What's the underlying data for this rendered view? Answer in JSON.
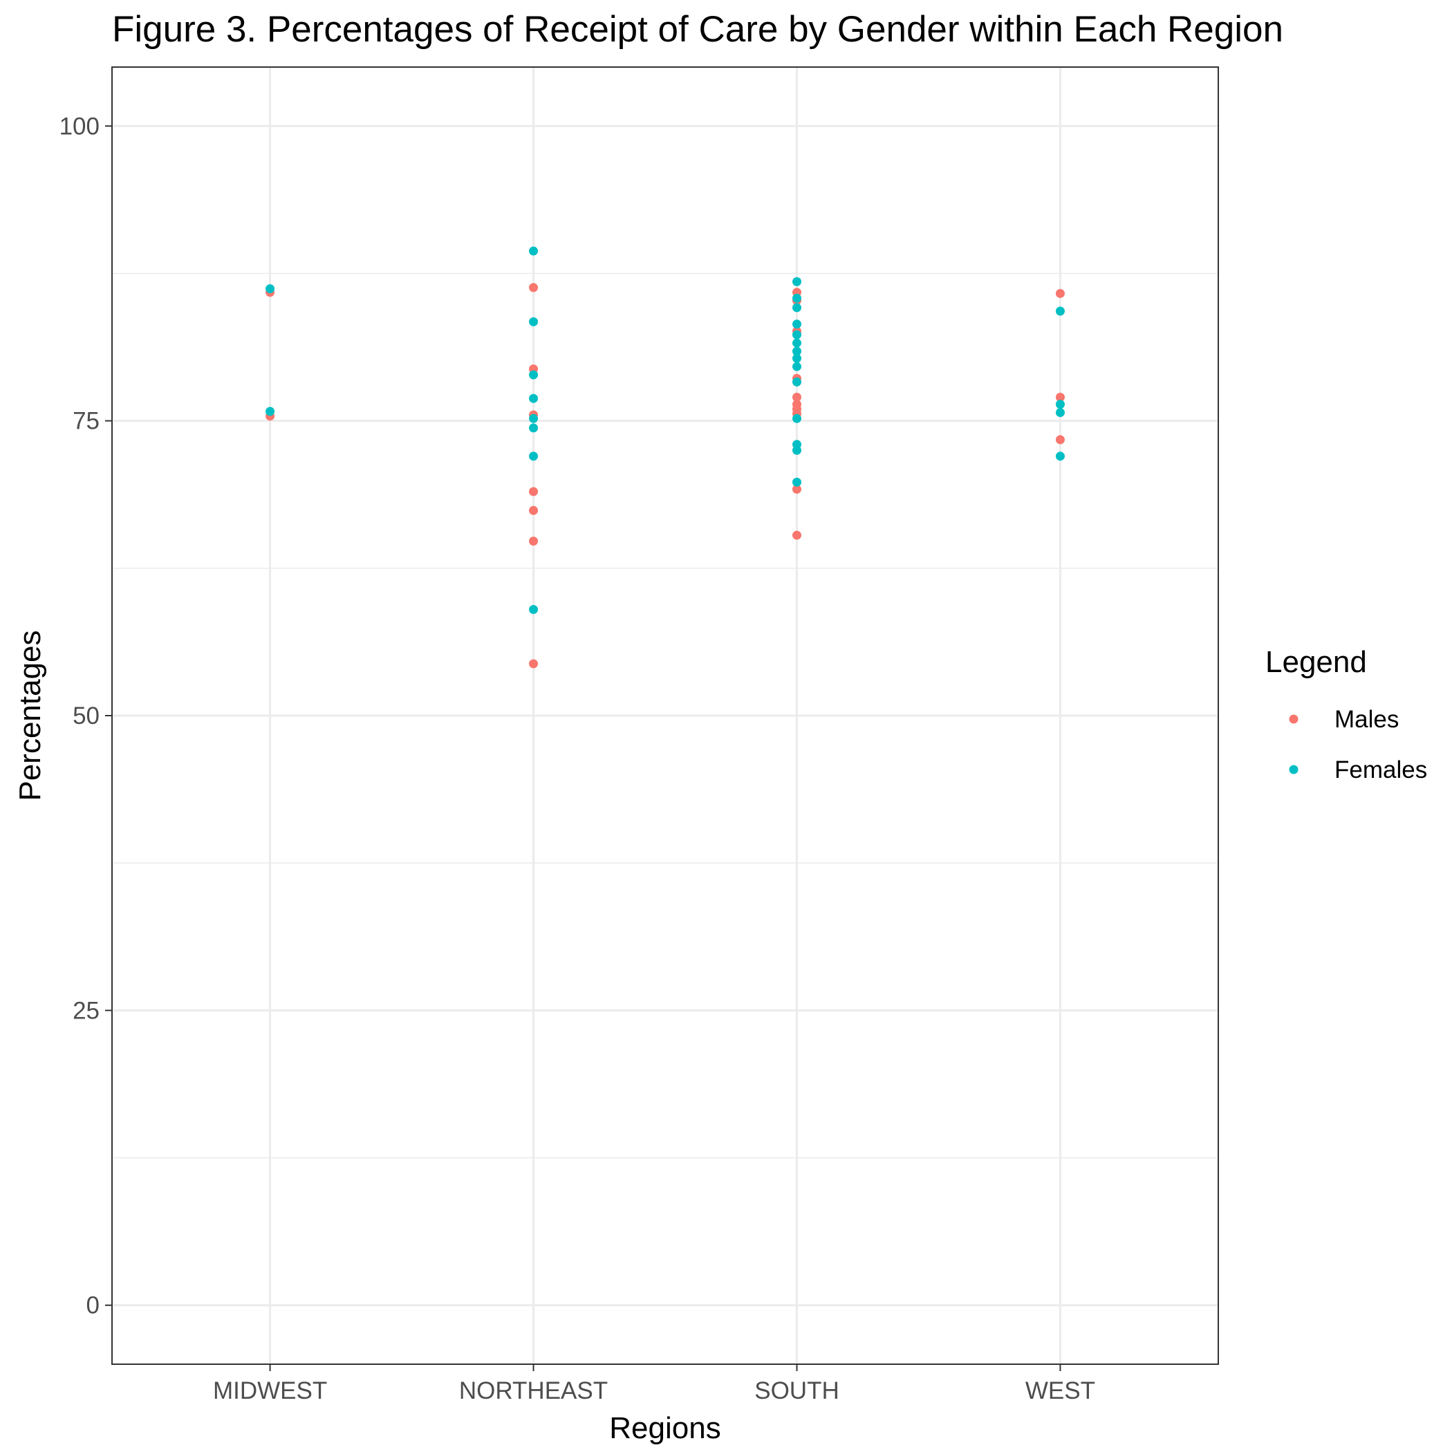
{
  "chart_data": {
    "type": "scatter",
    "title": "Figure 3. Percentages of Receipt of Care by Gender within Each Region",
    "xlabel": "Regions",
    "ylabel": "Percentages",
    "categories": [
      "MIDWEST",
      "NORTHEAST",
      "SOUTH",
      "WEST"
    ],
    "ylim": [
      -5,
      105
    ],
    "yticks": [
      0,
      25,
      50,
      75,
      100
    ],
    "grid": true,
    "legend": {
      "title": "Legend",
      "position": "right"
    },
    "series": [
      {
        "name": "Males",
        "color": "#F8766D",
        "points": [
          {
            "x": "MIDWEST",
            "y": 85.9
          },
          {
            "x": "MIDWEST",
            "y": 75.4
          },
          {
            "x": "NORTHEAST",
            "y": 86.3
          },
          {
            "x": "NORTHEAST",
            "y": 79.4
          },
          {
            "x": "NORTHEAST",
            "y": 75.5
          },
          {
            "x": "NORTHEAST",
            "y": 69.0
          },
          {
            "x": "NORTHEAST",
            "y": 67.4
          },
          {
            "x": "NORTHEAST",
            "y": 64.8
          },
          {
            "x": "NORTHEAST",
            "y": 54.4
          },
          {
            "x": "SOUTH",
            "y": 85.9
          },
          {
            "x": "SOUTH",
            "y": 85.2
          },
          {
            "x": "SOUTH",
            "y": 82.6
          },
          {
            "x": "SOUTH",
            "y": 78.6
          },
          {
            "x": "SOUTH",
            "y": 77.0
          },
          {
            "x": "SOUTH",
            "y": 76.4
          },
          {
            "x": "SOUTH",
            "y": 76.0
          },
          {
            "x": "SOUTH",
            "y": 75.6
          },
          {
            "x": "SOUTH",
            "y": 69.2
          },
          {
            "x": "SOUTH",
            "y": 65.3
          },
          {
            "x": "WEST",
            "y": 85.8
          },
          {
            "x": "WEST",
            "y": 77.0
          },
          {
            "x": "WEST",
            "y": 73.4
          }
        ]
      },
      {
        "name": "Females",
        "color": "#00BFC4",
        "points": [
          {
            "x": "MIDWEST",
            "y": 86.2
          },
          {
            "x": "MIDWEST",
            "y": 75.8
          },
          {
            "x": "NORTHEAST",
            "y": 89.4
          },
          {
            "x": "NORTHEAST",
            "y": 83.4
          },
          {
            "x": "NORTHEAST",
            "y": 78.9
          },
          {
            "x": "NORTHEAST",
            "y": 76.9
          },
          {
            "x": "NORTHEAST",
            "y": 75.2
          },
          {
            "x": "NORTHEAST",
            "y": 74.4
          },
          {
            "x": "NORTHEAST",
            "y": 72.0
          },
          {
            "x": "NORTHEAST",
            "y": 59.0
          },
          {
            "x": "SOUTH",
            "y": 86.8
          },
          {
            "x": "SOUTH",
            "y": 85.4
          },
          {
            "x": "SOUTH",
            "y": 84.6
          },
          {
            "x": "SOUTH",
            "y": 83.2
          },
          {
            "x": "SOUTH",
            "y": 82.3
          },
          {
            "x": "SOUTH",
            "y": 81.6
          },
          {
            "x": "SOUTH",
            "y": 80.9
          },
          {
            "x": "SOUTH",
            "y": 80.3
          },
          {
            "x": "SOUTH",
            "y": 79.6
          },
          {
            "x": "SOUTH",
            "y": 78.3
          },
          {
            "x": "SOUTH",
            "y": 75.2
          },
          {
            "x": "SOUTH",
            "y": 73.0
          },
          {
            "x": "SOUTH",
            "y": 72.5
          },
          {
            "x": "SOUTH",
            "y": 69.8
          },
          {
            "x": "WEST",
            "y": 84.3
          },
          {
            "x": "WEST",
            "y": 76.4
          },
          {
            "x": "WEST",
            "y": 75.7
          },
          {
            "x": "WEST",
            "y": 72.0
          }
        ]
      }
    ]
  }
}
